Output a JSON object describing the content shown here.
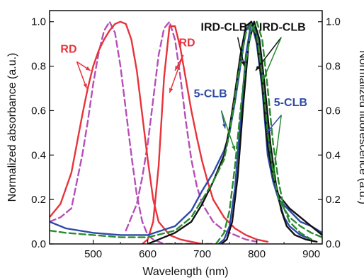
{
  "chart_data": {
    "type": "line",
    "xlabel": "Wavelength (nm)",
    "ylabel_left": "Normalized absorbance (a.u.)",
    "ylabel_right": "Normalized fluorescence (a.u.)",
    "xlim": [
      420,
      920
    ],
    "ylim": [
      0,
      1.05
    ],
    "x_ticks": [
      "500",
      "600",
      "700",
      "800",
      "900"
    ],
    "y_ticks": [
      "0.0",
      "0.2",
      "0.4",
      "0.6",
      "0.8",
      "1.0"
    ],
    "grid": false,
    "series": [
      {
        "name": "RD",
        "kind": "absorbance",
        "color": "#b64fb8",
        "dash": "dashed",
        "x": [
          420,
          440,
          460,
          470,
          480,
          490,
          500,
          510,
          520,
          530,
          540,
          550,
          560,
          570,
          580,
          590,
          600,
          610,
          620,
          630,
          640,
          650,
          660,
          670,
          680,
          700,
          720
        ],
        "y": [
          0.1,
          0.12,
          0.16,
          0.28,
          0.4,
          0.55,
          0.72,
          0.86,
          0.96,
          1.0,
          0.95,
          0.8,
          0.6,
          0.4,
          0.22,
          0.1,
          0.04,
          0.02,
          0.01,
          0.0,
          0.0,
          0.0,
          0.0,
          0.0,
          0.0,
          0.0,
          0.0
        ]
      },
      {
        "name": "RD",
        "kind": "fluorescence",
        "color": "#b64fb8",
        "dash": "dashed",
        "x": [
          560,
          570,
          580,
          590,
          600,
          610,
          620,
          630,
          640,
          650,
          660,
          670,
          680,
          690,
          700,
          720,
          740,
          760,
          780,
          800
        ],
        "y": [
          0.06,
          0.12,
          0.18,
          0.3,
          0.45,
          0.65,
          0.85,
          0.97,
          1.0,
          0.92,
          0.75,
          0.55,
          0.38,
          0.26,
          0.18,
          0.1,
          0.06,
          0.04,
          0.02,
          0.01
        ]
      },
      {
        "name": "RD",
        "kind": "absorbance",
        "color": "#e8333b",
        "dash": "solid",
        "x": [
          420,
          440,
          460,
          470,
          480,
          490,
          500,
          510,
          520,
          530,
          540,
          550,
          560,
          570,
          580,
          590,
          600,
          610,
          620,
          640,
          660,
          680,
          700
        ],
        "y": [
          0.12,
          0.18,
          0.32,
          0.45,
          0.58,
          0.7,
          0.8,
          0.87,
          0.92,
          0.96,
          0.99,
          1.0,
          0.99,
          0.92,
          0.78,
          0.58,
          0.38,
          0.2,
          0.1,
          0.04,
          0.02,
          0.01,
          0.0
        ]
      },
      {
        "name": "RD",
        "kind": "fluorescence",
        "color": "#e8333b",
        "dash": "solid",
        "x": [
          590,
          600,
          610,
          620,
          630,
          640,
          650,
          660,
          670,
          680,
          690,
          700,
          710,
          720,
          740,
          760,
          780,
          800,
          820
        ],
        "y": [
          0.0,
          0.02,
          0.1,
          0.35,
          0.75,
          0.98,
          0.98,
          0.88,
          0.74,
          0.6,
          0.48,
          0.37,
          0.28,
          0.2,
          0.12,
          0.07,
          0.04,
          0.02,
          0.01
        ]
      },
      {
        "name": "5-CLB",
        "kind": "absorbance",
        "color": "#2d4aa8",
        "dash": "solid",
        "x": [
          420,
          450,
          500,
          550,
          600,
          650,
          680,
          700,
          720,
          740,
          750,
          760,
          770,
          780,
          790,
          800,
          810,
          820,
          830,
          840,
          860,
          880,
          900,
          920
        ],
        "y": [
          0.1,
          0.07,
          0.05,
          0.04,
          0.04,
          0.08,
          0.15,
          0.24,
          0.32,
          0.42,
          0.5,
          0.64,
          0.8,
          0.96,
          1.0,
          0.9,
          0.7,
          0.4,
          0.28,
          0.2,
          0.15,
          0.1,
          0.08,
          0.05
        ]
      },
      {
        "name": "5-CLB",
        "kind": "fluorescence",
        "color": "#2d4aa8",
        "dash": "solid",
        "x": [
          730,
          740,
          750,
          760,
          770,
          780,
          790,
          800,
          810,
          820,
          830,
          840,
          850,
          860,
          880,
          900
        ],
        "y": [
          0.0,
          0.02,
          0.08,
          0.25,
          0.55,
          0.85,
          1.0,
          0.95,
          0.75,
          0.5,
          0.32,
          0.2,
          0.12,
          0.08,
          0.04,
          0.02
        ]
      },
      {
        "name": "IRD-CLB",
        "kind": "absorbance",
        "color": "#111111",
        "dash": "solid",
        "x": [
          600,
          650,
          680,
          700,
          720,
          740,
          750,
          760,
          770,
          780,
          790,
          800,
          810,
          820,
          830,
          840,
          860,
          880,
          900,
          920
        ],
        "y": [
          0.0,
          0.05,
          0.1,
          0.18,
          0.28,
          0.4,
          0.52,
          0.68,
          0.85,
          0.98,
          1.0,
          0.92,
          0.72,
          0.44,
          0.3,
          0.22,
          0.16,
          0.12,
          0.08,
          0.04
        ]
      },
      {
        "name": "IRD-CLB",
        "kind": "fluorescence",
        "color": "#111111",
        "dash": "solid",
        "x": [
          735,
          745,
          755,
          765,
          775,
          785,
          795,
          805,
          815,
          825,
          835,
          845,
          855,
          870,
          890,
          910
        ],
        "y": [
          0.0,
          0.02,
          0.1,
          0.3,
          0.62,
          0.9,
          1.0,
          0.92,
          0.7,
          0.45,
          0.27,
          0.15,
          0.08,
          0.04,
          0.02,
          0.01
        ]
      },
      {
        "name": "",
        "kind": "absorbance",
        "color": "#2a8c2e",
        "dash": "dashed",
        "x": [
          420,
          450,
          500,
          550,
          600,
          650,
          680,
          700,
          720,
          740,
          750,
          760,
          770,
          780,
          790,
          800,
          810,
          820,
          830,
          840,
          860,
          880,
          900,
          920
        ],
        "y": [
          0.06,
          0.05,
          0.04,
          0.03,
          0.03,
          0.06,
          0.12,
          0.2,
          0.28,
          0.38,
          0.5,
          0.66,
          0.82,
          0.95,
          0.99,
          0.94,
          0.76,
          0.5,
          0.32,
          0.2,
          0.12,
          0.08,
          0.05,
          0.03
        ]
      },
      {
        "name": "",
        "kind": "fluorescence",
        "color": "#2a8c2e",
        "dash": "dashed",
        "x": [
          725,
          740,
          750,
          760,
          770,
          780,
          790,
          800,
          810,
          820,
          830,
          840,
          850,
          860,
          880,
          900
        ],
        "y": [
          0.0,
          0.05,
          0.15,
          0.35,
          0.6,
          0.82,
          0.96,
          1.0,
          0.92,
          0.7,
          0.45,
          0.28,
          0.16,
          0.1,
          0.05,
          0.02
        ]
      }
    ],
    "annotations": [
      {
        "text": "RD",
        "color": "#e8333b",
        "x": 455,
        "y": 0.86
      },
      {
        "text": "RD",
        "color": "#e8333b",
        "x": 672,
        "y": 0.89
      },
      {
        "text": "5-CLB",
        "color": "#2d4aa8",
        "x": 715,
        "y": 0.66
      },
      {
        "text": "5-CLB",
        "color": "#2d4aa8",
        "x": 862,
        "y": 0.62
      },
      {
        "text": "IRD-CLB",
        "color": "#111111",
        "x": 740,
        "y": 0.96
      },
      {
        "text": "IRD-CLB",
        "color": "#111111",
        "x": 847,
        "y": 0.96
      }
    ]
  }
}
